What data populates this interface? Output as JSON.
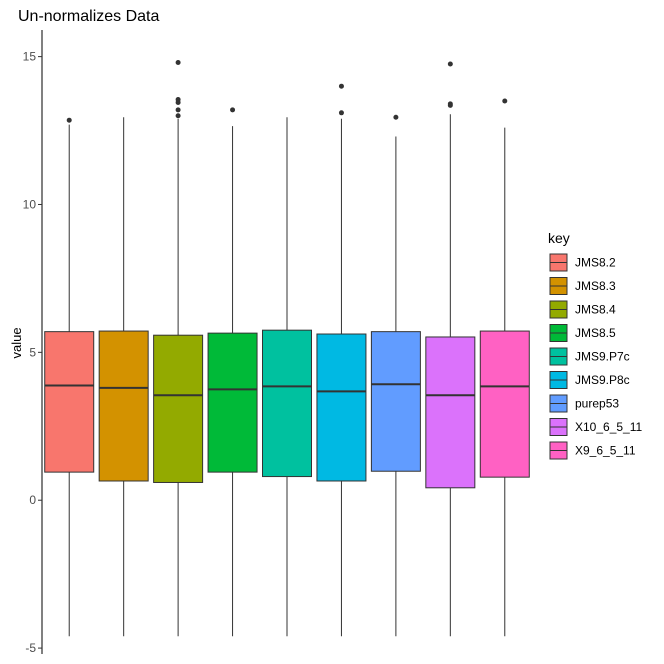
{
  "chart_data": {
    "type": "boxplot",
    "title": "Un-normalizes Data",
    "xlabel": "",
    "ylabel": "value",
    "ylim": [
      -5.2,
      15.9
    ],
    "yticks": [
      -5,
      0,
      5,
      10,
      15
    ],
    "ytick_labels": [
      "-5",
      "0",
      "5",
      "10",
      "15"
    ],
    "grid": false,
    "legend": {
      "title": "key",
      "position": "right"
    },
    "series": [
      {
        "name": "JMS8.2",
        "color": "#F8766D",
        "min": -4.6,
        "q1": 0.95,
        "median": 3.88,
        "q3": 5.7,
        "max": 12.7,
        "outliers": [
          12.85
        ]
      },
      {
        "name": "JMS8.3",
        "color": "#D39200",
        "min": -4.6,
        "q1": 0.65,
        "median": 3.8,
        "q3": 5.72,
        "max": 12.95,
        "outliers": []
      },
      {
        "name": "JMS8.4",
        "color": "#93AA00",
        "min": -4.6,
        "q1": 0.6,
        "median": 3.55,
        "q3": 5.58,
        "max": 12.9,
        "outliers": [
          13.0,
          13.2,
          13.45,
          13.55,
          14.8
        ]
      },
      {
        "name": "JMS8.5",
        "color": "#00BA38",
        "min": -4.6,
        "q1": 0.95,
        "median": 3.75,
        "q3": 5.65,
        "max": 12.65,
        "outliers": [
          13.2
        ]
      },
      {
        "name": "JMS9.P7c",
        "color": "#00C19F",
        "min": -4.6,
        "q1": 0.8,
        "median": 3.85,
        "q3": 5.75,
        "max": 12.95,
        "outliers": []
      },
      {
        "name": "JMS9.P8c",
        "color": "#00B9E3",
        "min": -4.6,
        "q1": 0.65,
        "median": 3.68,
        "q3": 5.62,
        "max": 12.9,
        "outliers": [
          13.1,
          14.0
        ]
      },
      {
        "name": "purep53",
        "color": "#619CFF",
        "min": -4.6,
        "q1": 0.98,
        "median": 3.92,
        "q3": 5.7,
        "max": 12.3,
        "outliers": [
          12.95
        ]
      },
      {
        "name": "X10_6_5_11",
        "color": "#DB72FB",
        "min": -4.6,
        "q1": 0.42,
        "median": 3.55,
        "q3": 5.52,
        "max": 13.05,
        "outliers": [
          13.35,
          13.4,
          14.75
        ]
      },
      {
        "name": "X9_6_5_11",
        "color": "#FF61C3",
        "min": -4.6,
        "q1": 0.78,
        "median": 3.85,
        "q3": 5.72,
        "max": 12.6,
        "outliers": [
          13.5
        ]
      }
    ]
  }
}
